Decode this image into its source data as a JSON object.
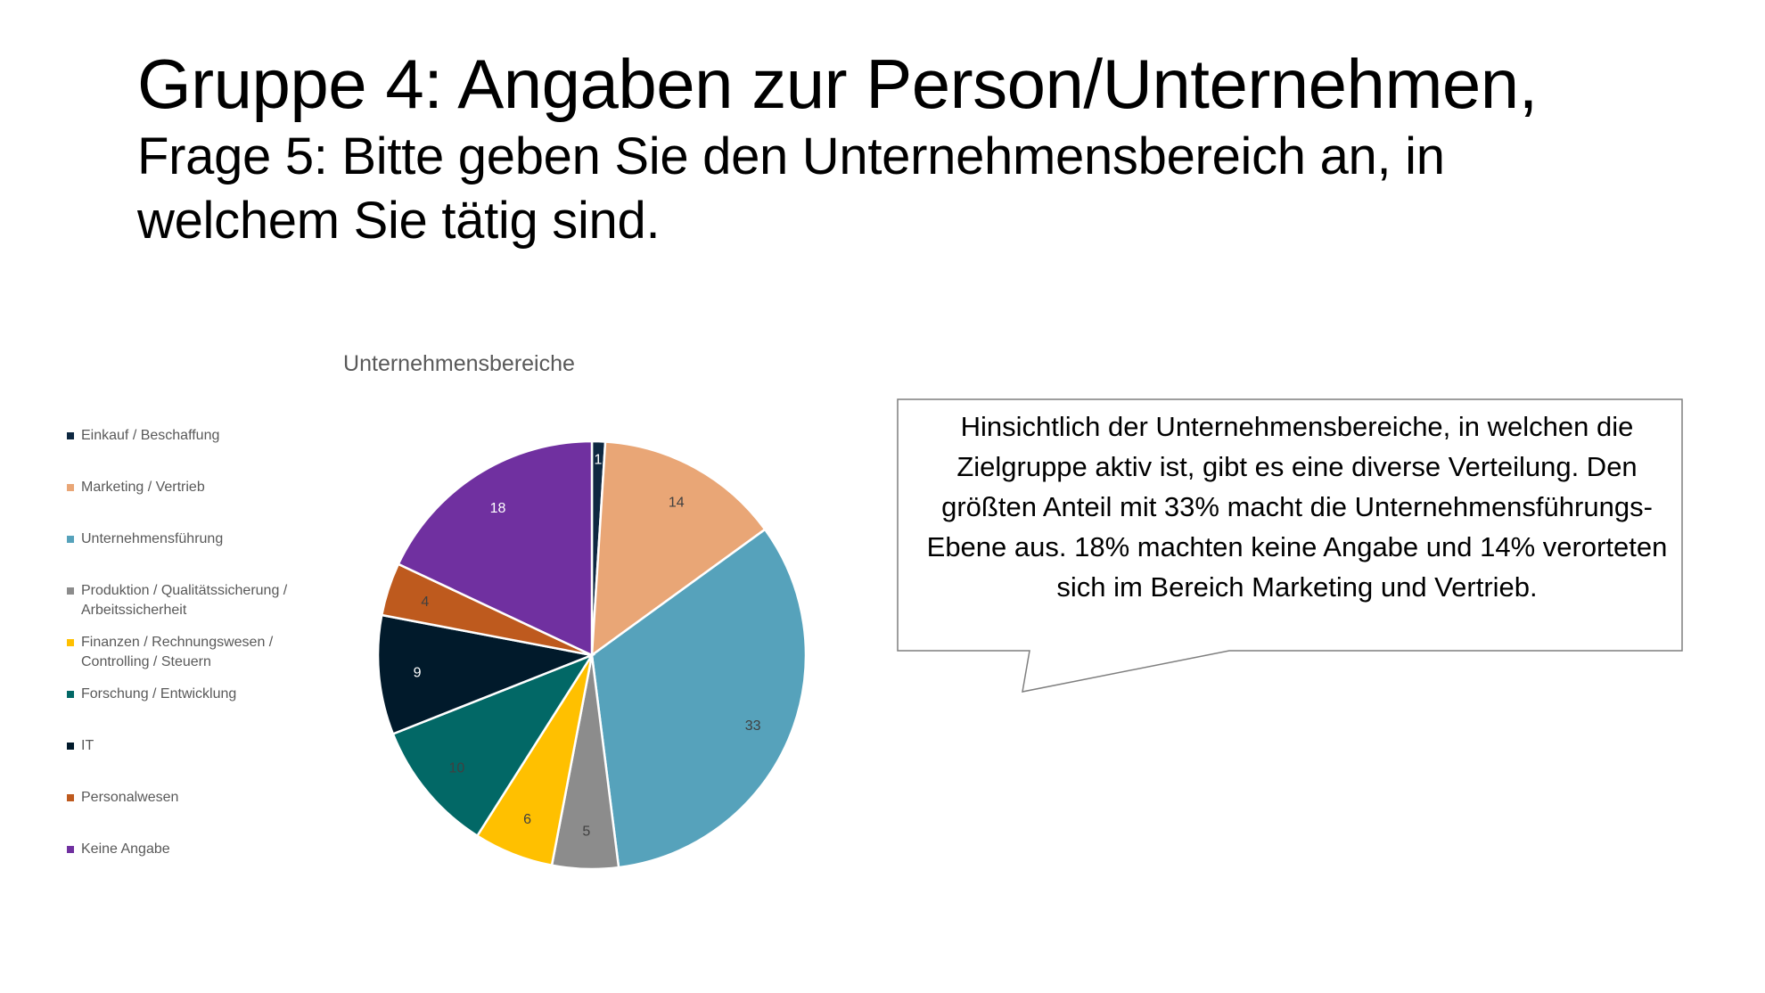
{
  "slide": {
    "title": "Gruppe 4: Angaben zur Person/Unternehmen,",
    "subtitle": "Frage 5: Bitte geben Sie den Unternehmensbereich an, in welchem Sie tätig sind."
  },
  "callout": {
    "text": "Hinsichtlich der Unternehmensbereiche, in welchen die Zielgruppe aktiv ist, gibt es eine diverse Verteilung. Den größten Anteil mit 33% macht die Unternehmensführungs-Ebene aus. 18% machten keine Angabe und 14% verorteten sich im Bereich Marketing und Vertrieb."
  },
  "chart_data": {
    "type": "pie",
    "title": "Unternehmensbereiche",
    "legend_position": "left",
    "slices": [
      {
        "label": "Einkauf / Beschaffung",
        "value": 1,
        "color": "#0E2841"
      },
      {
        "label": "Marketing / Vertrieb",
        "value": 14,
        "color": "#E9A676"
      },
      {
        "label": "Unternehmensführung",
        "value": 33,
        "color": "#56A2BB"
      },
      {
        "label": "Produktion / Qualitätssicherung / Arbeitssicherheit",
        "value": 5,
        "color": "#8C8C8C"
      },
      {
        "label": "Finanzen / Rechnungswesen / Controlling / Steuern",
        "value": 6,
        "color": "#FFC000"
      },
      {
        "label": "Forschung / Entwicklung",
        "value": 10,
        "color": "#026866"
      },
      {
        "label": "IT",
        "value": 9,
        "color": "#011A2B"
      },
      {
        "label": "Personalwesen",
        "value": 4,
        "color": "#BE5A1E"
      },
      {
        "label": "Keine Angabe",
        "value": 18,
        "color": "#7030A0"
      }
    ]
  }
}
